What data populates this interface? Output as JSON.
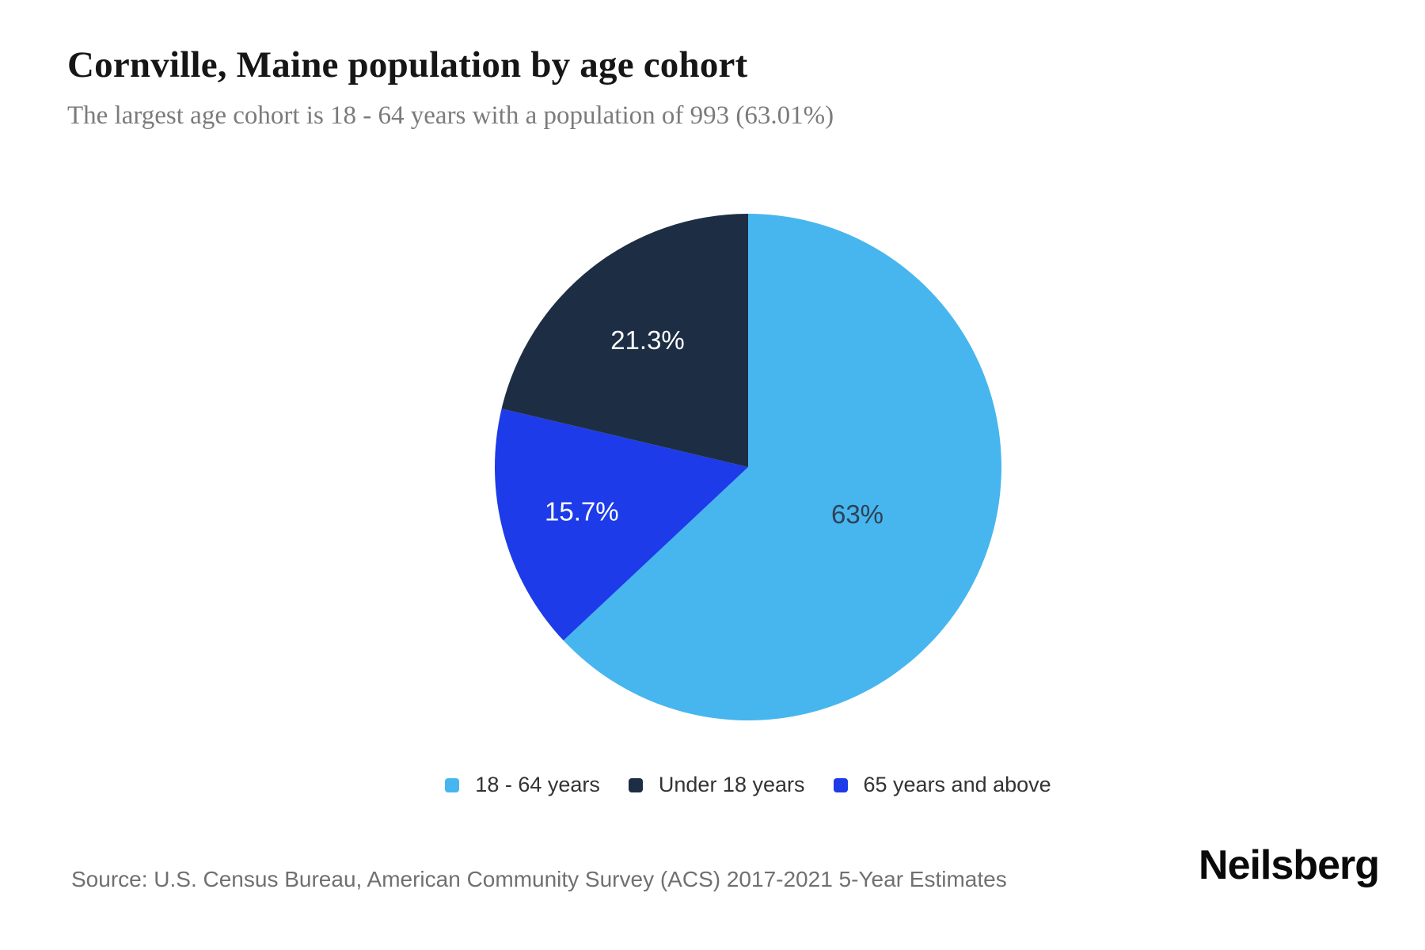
{
  "header": {
    "title": "Cornville, Maine population by age cohort",
    "subtitle": "The largest age cohort is 18 - 64 years with a population of 993 (63.01%)"
  },
  "chart_data": {
    "type": "pie",
    "title": "Cornville, Maine population by age cohort",
    "largest_cohort": {
      "label": "18 - 64 years",
      "population": 993,
      "share_pct": 63.01
    },
    "start_angle_deg": 0,
    "direction": "clockwise-from-top",
    "slices": [
      {
        "label": "18 - 64 years",
        "value": 63,
        "display": "63%",
        "color": "#47b6ee",
        "text_color": "#2e4157",
        "label_radius_frac": 0.47
      },
      {
        "label": "65 years and above",
        "value": 15.7,
        "display": "15.7%",
        "color": "#1d3be9",
        "text_color": "#ffffff",
        "label_radius_frac": 0.68
      },
      {
        "label": "Under 18 years",
        "value": 21.3,
        "display": "21.3%",
        "color": "#1d2e44",
        "text_color": "#ffffff",
        "label_radius_frac": 0.64
      }
    ],
    "legend_order": [
      0,
      2,
      1
    ],
    "legend_position": "bottom-center"
  },
  "footer": {
    "source": "Source: U.S. Census Bureau, American Community Survey (ACS) 2017-2021 5-Year Estimates",
    "brand": "Neilsberg"
  }
}
